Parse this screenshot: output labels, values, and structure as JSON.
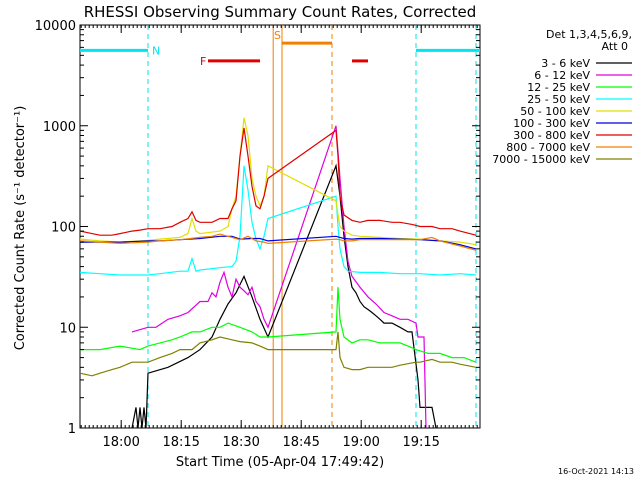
{
  "chart_data": {
    "type": "line",
    "title": "RHESSI Observing Summary Count Rates, Corrected",
    "xlabel": "Start Time (05-Apr-04 17:49:42)",
    "ylabel": "Corrected Count Rate (s⁻¹ detector⁻¹)",
    "y_scale": "log",
    "ylim": [
      1,
      10000
    ],
    "y_ticks": [
      1,
      10,
      100,
      1000,
      10000
    ],
    "y_tick_labels": [
      "1",
      "10",
      "100",
      "1000",
      "10000"
    ],
    "x_units": "minutes after 17:49:42",
    "xlim": [
      0,
      100
    ],
    "x_ticks": [
      10.3,
      25.3,
      40.3,
      55.3,
      70.3,
      85.3
    ],
    "x_tick_labels": [
      "18:00",
      "18:15",
      "18:30",
      "18:45",
      "19:00",
      "19:15"
    ],
    "legend_header": [
      "Det 1,3,4,5,6,9,",
      "Att 0"
    ],
    "legend_position": "right",
    "footer": "16-Oct-2021 14:13",
    "flags": [
      {
        "label": "N",
        "color": "#00e5ee",
        "x": [
          0,
          17
        ],
        "level": 5600
      },
      {
        "label": "",
        "color": "#00e5ee",
        "x": [
          84,
          100
        ],
        "level": 5600
      },
      {
        "label": "F",
        "color": "#e00000",
        "x": [
          32,
          45
        ],
        "level": 4400
      },
      {
        "label": "",
        "color": "#e00000",
        "x": [
          68,
          72
        ],
        "level": 4400
      },
      {
        "label": "S",
        "color": "#f08000",
        "x": [
          50.5,
          63
        ],
        "level": 6600
      }
    ],
    "markers": [
      {
        "x": 17,
        "color": "#00e5ee",
        "style": "dashed"
      },
      {
        "x": 84,
        "color": "#00e5ee",
        "style": "dashed"
      },
      {
        "x": 99,
        "color": "#00e5ee",
        "style": "dashed"
      },
      {
        "x": 48.3,
        "color": "#f08000",
        "style": "solid"
      },
      {
        "x": 50.5,
        "color": "#f08000",
        "style": "solid"
      },
      {
        "x": 63,
        "color": "#f08000",
        "style": "dashed"
      }
    ],
    "series": [
      {
        "name": "3 - 6 keV",
        "color": "#000000",
        "x": [
          13,
          14,
          14.5,
          15,
          15.5,
          16,
          16.5,
          17,
          22,
          27,
          30,
          33,
          35,
          37,
          39,
          41,
          43,
          45,
          47,
          64,
          65,
          66,
          67,
          68,
          69,
          70,
          71,
          72,
          73,
          74,
          75,
          76,
          78,
          80,
          82,
          83,
          84.5,
          85,
          86,
          87,
          88,
          89
        ],
        "y": [
          1,
          1.6,
          1,
          1.6,
          1,
          1.6,
          1,
          3.5,
          4,
          5,
          6,
          8,
          12,
          17,
          22,
          32,
          20,
          12,
          8,
          400,
          200,
          80,
          40,
          25,
          22,
          18,
          16,
          15,
          14,
          13,
          12,
          11,
          11,
          10,
          9,
          9,
          3,
          1.6,
          1.6,
          1.6,
          1.6,
          1
        ]
      },
      {
        "name": "6 - 12 keV",
        "color": "#e000e0",
        "x": [
          13,
          17,
          19,
          22,
          25,
          27,
          30,
          32,
          33,
          34,
          35,
          36,
          37,
          38,
          39,
          40,
          41,
          42,
          43,
          44,
          45,
          46,
          47,
          64,
          65,
          66,
          67,
          68,
          70,
          72,
          74,
          76,
          78,
          80,
          82,
          84,
          84.5,
          86,
          86.5
        ],
        "y": [
          9,
          10,
          10,
          12,
          13,
          14,
          18,
          18,
          22,
          20,
          28,
          35,
          25,
          20,
          30,
          25,
          23,
          21,
          25,
          18,
          16,
          12,
          10,
          1000,
          300,
          100,
          45,
          32,
          25,
          20,
          17,
          14,
          13,
          12,
          12,
          11,
          8,
          8,
          1
        ]
      },
      {
        "name": "12 - 25 keV",
        "color": "#00ff00",
        "x": [
          0,
          5,
          10,
          15,
          17,
          20,
          23,
          25,
          28,
          30,
          33,
          35,
          37,
          40,
          43,
          45,
          47,
          64,
          64.5,
          65,
          66,
          68,
          70,
          72,
          75,
          78,
          80,
          82,
          84,
          87,
          90,
          93,
          96,
          99
        ],
        "y": [
          6,
          6,
          6.5,
          6,
          6.5,
          7,
          7.5,
          8,
          9,
          9,
          10,
          10,
          11,
          10,
          9,
          8,
          8,
          9,
          25,
          12,
          8,
          7,
          7.5,
          7.5,
          7,
          7,
          7,
          6.5,
          6,
          5.5,
          5.5,
          5,
          5,
          4.5
        ]
      },
      {
        "name": "25 - 50 keV",
        "color": "#00ffff",
        "x": [
          0,
          5,
          10,
          15,
          17,
          20,
          25,
          27,
          28,
          29,
          30,
          35,
          38,
          39,
          40,
          41,
          42,
          43,
          44,
          45,
          46,
          47,
          64,
          64.5,
          65,
          66,
          67,
          70,
          75,
          80,
          85,
          90,
          95,
          99
        ],
        "y": [
          35,
          34,
          33,
          33,
          33,
          34,
          36,
          36,
          48,
          36,
          37,
          39,
          40,
          45,
          80,
          400,
          230,
          110,
          75,
          60,
          80,
          120,
          200,
          100,
          60,
          40,
          36,
          35,
          35,
          34,
          34,
          33,
          34,
          33
        ]
      },
      {
        "name": "50 - 100 keV",
        "color": "#e0e000",
        "x": [
          0,
          5,
          10,
          17,
          20,
          25,
          27,
          28,
          29,
          30,
          35,
          37,
          38,
          39,
          40,
          41,
          42,
          43,
          44,
          45,
          46,
          47,
          64,
          64.5,
          65,
          66,
          68,
          70,
          75,
          80,
          85,
          90,
          95,
          99
        ],
        "y": [
          75,
          72,
          70,
          73,
          75,
          78,
          85,
          120,
          90,
          85,
          90,
          100,
          150,
          200,
          500,
          1200,
          800,
          300,
          200,
          160,
          200,
          400,
          180,
          130,
          100,
          90,
          82,
          80,
          78,
          76,
          75,
          72,
          70,
          66
        ]
      },
      {
        "name": "100 - 300 keV",
        "color": "#0000e0",
        "x": [
          0,
          5,
          10,
          17,
          20,
          25,
          30,
          35,
          38,
          40,
          43,
          45,
          47,
          64,
          65,
          66,
          68,
          70,
          75,
          80,
          85,
          90,
          95,
          99
        ],
        "y": [
          70,
          70,
          70,
          72,
          72,
          74,
          76,
          80,
          80,
          75,
          76,
          76,
          72,
          80,
          78,
          76,
          75,
          76,
          76,
          75,
          74,
          72,
          66,
          60
        ]
      },
      {
        "name": "300 - 800 keV",
        "color": "#e00000",
        "x": [
          0,
          3,
          5,
          8,
          10,
          13,
          15,
          17,
          20,
          23,
          25,
          27,
          28,
          29,
          30,
          33,
          35,
          37,
          38,
          39,
          40,
          41,
          42,
          43,
          44,
          45,
          46,
          47,
          64,
          64.5,
          65,
          66,
          68,
          70,
          72,
          75,
          78,
          80,
          83,
          85,
          88,
          90,
          93,
          95,
          99
        ],
        "y": [
          90,
          85,
          82,
          82,
          85,
          90,
          92,
          95,
          95,
          100,
          110,
          120,
          140,
          115,
          110,
          110,
          120,
          120,
          150,
          180,
          500,
          950,
          500,
          250,
          160,
          150,
          200,
          300,
          900,
          500,
          200,
          130,
          115,
          110,
          115,
          115,
          110,
          110,
          105,
          100,
          100,
          95,
          95,
          90,
          82
        ]
      },
      {
        "name": "800 - 7000 keV",
        "color": "#f08000",
        "x": [
          0,
          5,
          10,
          17,
          20,
          25,
          30,
          33,
          35,
          38,
          40,
          42,
          44,
          46,
          47,
          64,
          65,
          66,
          68,
          70,
          75,
          80,
          85,
          88,
          90,
          95,
          99
        ],
        "y": [
          72,
          70,
          68,
          70,
          72,
          74,
          78,
          80,
          84,
          78,
          74,
          80,
          72,
          70,
          68,
          75,
          74,
          72,
          72,
          74,
          74,
          74,
          74,
          78,
          72,
          64,
          58
        ]
      },
      {
        "name": "7000 - 15000 keV",
        "color": "#808000",
        "x": [
          0,
          3,
          5,
          8,
          10,
          13,
          15,
          17,
          20,
          23,
          25,
          28,
          30,
          33,
          35,
          38,
          40,
          43,
          45,
          47,
          64,
          64.5,
          65,
          66,
          68,
          70,
          72,
          75,
          78,
          80,
          84,
          85,
          88,
          90,
          93,
          95,
          99
        ],
        "y": [
          3.5,
          3.3,
          3.5,
          3.8,
          4,
          4.5,
          4.5,
          4.5,
          5,
          5.5,
          6,
          6,
          7,
          7.5,
          8,
          7.5,
          7.2,
          7,
          6.5,
          6,
          6,
          9,
          5,
          4,
          3.8,
          3.8,
          4,
          4,
          4,
          4.2,
          4.5,
          4.5,
          4.8,
          4.5,
          4.5,
          4.3,
          4
        ]
      }
    ]
  }
}
